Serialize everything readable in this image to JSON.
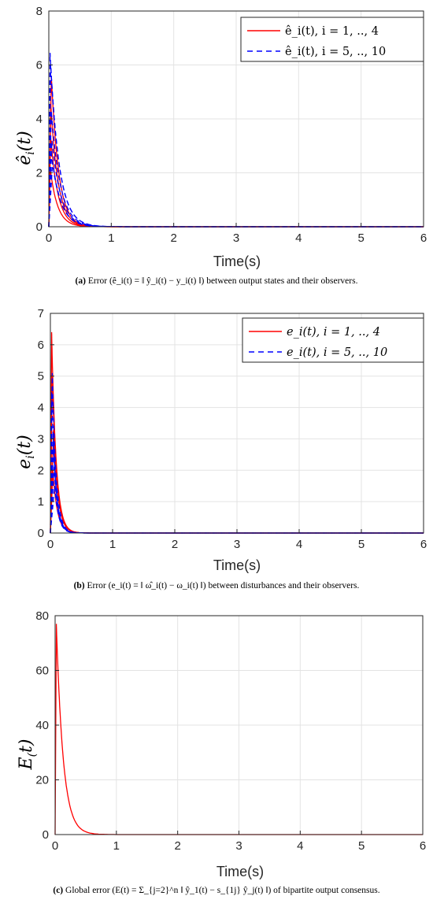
{
  "chart_data": [
    {
      "id": "a",
      "type": "line",
      "xlabel": "Time(s)",
      "ylabel": "ê_i(t)",
      "xlim": [
        0,
        6
      ],
      "ylim": [
        0,
        8
      ],
      "xticks": [
        "0",
        "1",
        "2",
        "3",
        "4",
        "5",
        "6"
      ],
      "yticks": [
        "0",
        "2",
        "4",
        "6",
        "8"
      ],
      "grid": true,
      "legend_position": "top-right",
      "caption": {
        "label": "(a)",
        "text": "Error (ê_i(t) = ‖ ŷ_i(t) − y_i(t) ‖) between output states and their observers."
      },
      "series": [
        {
          "name": "ê_i(t), i = 1, .., 4",
          "color": "#ff0000",
          "style": "solid",
          "decay": 8.5,
          "curves": [
            {
              "x0": 0.04,
              "y0": 5.6
            },
            {
              "x0": 0.03,
              "y0": 4.6
            },
            {
              "x0": 0.02,
              "y0": 2.2
            },
            {
              "x0": 0.03,
              "y0": 3.3
            }
          ]
        },
        {
          "name": "ê_i(t), i = 5, .., 10",
          "color": "#0000ff",
          "style": "dashed",
          "decay": 7.0,
          "curves": [
            {
              "x0": 0.02,
              "y0": 6.45
            },
            {
              "x0": 0.03,
              "y0": 6.0
            },
            {
              "x0": 0.04,
              "y0": 4.3
            },
            {
              "x0": 0.05,
              "y0": 3.2
            },
            {
              "x0": 0.04,
              "y0": 2.7
            },
            {
              "x0": 0.06,
              "y0": 2.4
            }
          ]
        }
      ]
    },
    {
      "id": "b",
      "type": "line",
      "xlabel": "Time(s)",
      "ylabel": "e_i(t)",
      "xlim": [
        0,
        6
      ],
      "ylim": [
        0,
        7
      ],
      "xticks": [
        "0",
        "1",
        "2",
        "3",
        "4",
        "5",
        "6"
      ],
      "yticks": [
        "0",
        "1",
        "2",
        "3",
        "4",
        "5",
        "6",
        "7"
      ],
      "grid": true,
      "legend_position": "top-right",
      "caption": {
        "label": "(b)",
        "text": "Error (e_i(t) = ‖ ω̂_i(t) − ω_i(t) ‖) between disturbances and their observers."
      },
      "series": [
        {
          "name": "e_i(t), i = 1, .., 4",
          "color": "#ff0000",
          "style": "solid",
          "decay": 14.0,
          "curves": [
            {
              "x0": 0.02,
              "y0": 6.4
            },
            {
              "x0": 0.03,
              "y0": 5.0
            },
            {
              "x0": 0.05,
              "y0": 3.3
            },
            {
              "x0": 0.04,
              "y0": 2.0
            }
          ]
        },
        {
          "name": "e_i(t), i = 5, .., 10",
          "color": "#0000ff",
          "style": "dashed",
          "decay": 16.0,
          "curves": [
            {
              "x0": 0.03,
              "y0": 5.1
            },
            {
              "x0": 0.02,
              "y0": 4.5
            },
            {
              "x0": 0.04,
              "y0": 3.2
            },
            {
              "x0": 0.05,
              "y0": 2.8
            },
            {
              "x0": 0.06,
              "y0": 2.1
            },
            {
              "x0": 0.07,
              "y0": 1.5
            }
          ]
        }
      ]
    },
    {
      "id": "c",
      "type": "line",
      "xlabel": "Time(s)",
      "ylabel": "E(t)",
      "xlim": [
        0,
        6
      ],
      "ylim": [
        0,
        80
      ],
      "xticks": [
        "0",
        "1",
        "2",
        "3",
        "4",
        "5",
        "6"
      ],
      "yticks": [
        "0",
        "20",
        "40",
        "60",
        "80"
      ],
      "grid": true,
      "legend_position": "none",
      "caption": {
        "label": "(c)",
        "text": "Global error (E(t) = Σ_{j=2}^n ‖ ŷ_1(t) − s_{1j} ŷ_j(t) ‖) of bipartite output consensus."
      },
      "series": [
        {
          "name": "",
          "color": "#ff0000",
          "style": "solid",
          "decay": 9.0,
          "curves": [
            {
              "x0": 0.02,
              "y0": 77.0
            }
          ]
        }
      ]
    }
  ]
}
